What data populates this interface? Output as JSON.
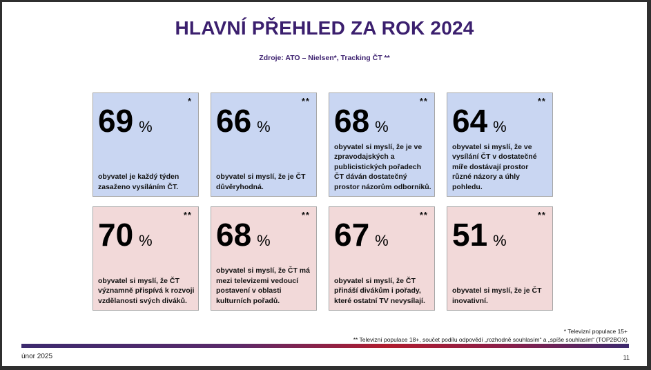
{
  "title": "HLAVNÍ PŘEHLED ZA ROK 2024",
  "subtitle": "Zdroje: ATO – Nielsen*, Tracking ČT **",
  "cards": [
    {
      "value": "69",
      "unit": "%",
      "mark": "*",
      "text": "obyvatel je každý týden zasaženo vysíláním ČT."
    },
    {
      "value": "66",
      "unit": "%",
      "mark": "**",
      "text": "obyvatel si myslí, že je ČT důvěryhodná."
    },
    {
      "value": "68",
      "unit": "%",
      "mark": "**",
      "text": "obyvatel si myslí, že je ve zpravodajských a publicistických pořadech ČT dáván dostatečný prostor názorům odborníků."
    },
    {
      "value": "64",
      "unit": "%",
      "mark": "**",
      "text": "obyvatel si myslí, že ve vysílání ČT v dostatečné míře dostávají prostor různé názory a úhly pohledu."
    },
    {
      "value": "70",
      "unit": "%",
      "mark": "**",
      "text": "obyvatel si myslí, že ČT významně přispívá k rozvoji vzdělanosti svých diváků."
    },
    {
      "value": "68",
      "unit": "%",
      "mark": "**",
      "text": "obyvatel si myslí, že ČT má mezi televizemi vedoucí postavení v oblasti kulturních pořadů."
    },
    {
      "value": "67",
      "unit": "%",
      "mark": "**",
      "text": "obyvatel si myslí, že ČT přináší divákům i pořady, které ostatní TV nevysílají."
    },
    {
      "value": "51",
      "unit": "%",
      "mark": "**",
      "text": "obyvatel si myslí, že je ČT inovativní."
    }
  ],
  "footnotes": {
    "note1": "* Televizní populace 15+",
    "note2": "** Televizní populace 18+, součet podílu odpovědí „rozhodně souhlasím“ a „spíše souhlasím“ (TOP2BOX)"
  },
  "footer": {
    "date": "únor 2025",
    "page_number": "11"
  },
  "colors": {
    "title": "#3b1f6e",
    "card_blue": "#c9d6f2",
    "card_pink": "#f2d9d9"
  }
}
